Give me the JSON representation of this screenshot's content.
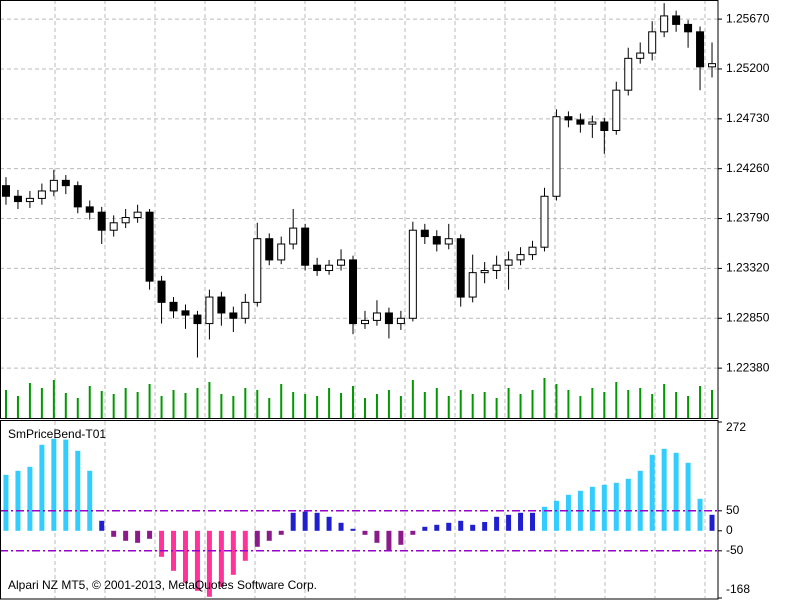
{
  "chart_data": [
    {
      "type": "candlestick",
      "open": [
        1.241,
        1.24,
        1.2395,
        1.2398,
        1.2405,
        1.2415,
        1.241,
        1.239,
        1.2385,
        1.2368,
        1.2375,
        1.238,
        1.2385,
        1.232,
        1.23,
        1.2292,
        1.2288,
        1.228,
        1.2305,
        1.229,
        1.2285,
        1.23,
        1.236,
        1.234,
        1.2355,
        1.237,
        1.2335,
        1.233,
        1.2335,
        1.234,
        1.228,
        1.2283,
        1.229,
        1.228,
        1.2285,
        1.2368,
        1.2362,
        1.2355,
        1.236,
        1.2305,
        1.2328,
        1.233,
        1.2335,
        1.234,
        1.2345,
        1.2352,
        1.24,
        1.2475,
        1.2472,
        1.2468,
        1.247,
        1.2462,
        1.25,
        1.253,
        1.2535,
        1.2555,
        1.257,
        1.2562,
        1.2555,
        1.2522
      ],
      "high": [
        1.2418,
        1.2406,
        1.2405,
        1.2412,
        1.2425,
        1.242,
        1.2414,
        1.2396,
        1.239,
        1.2382,
        1.2388,
        1.2392,
        1.2388,
        1.2325,
        1.2305,
        1.2298,
        1.2292,
        1.2312,
        1.231,
        1.2296,
        1.2308,
        1.2375,
        1.2365,
        1.2362,
        1.2388,
        1.2374,
        1.2342,
        1.234,
        1.235,
        1.2344,
        1.2292,
        1.2302,
        1.2295,
        1.2292,
        1.2376,
        1.2374,
        1.2368,
        1.2374,
        1.2364,
        1.2345,
        1.2338,
        1.2344,
        1.2348,
        1.2352,
        1.2358,
        1.2408,
        1.2482,
        1.248,
        1.2478,
        1.2476,
        1.2474,
        1.2508,
        1.254,
        1.2545,
        1.2565,
        1.2582,
        1.2575,
        1.2566,
        1.256,
        1.2545
      ],
      "low": [
        1.2392,
        1.2388,
        1.2389,
        1.2392,
        1.24,
        1.2402,
        1.2384,
        1.2378,
        1.2355,
        1.2362,
        1.237,
        1.2375,
        1.2312,
        1.228,
        1.2285,
        1.2275,
        1.2248,
        1.2265,
        1.2278,
        1.2272,
        1.228,
        1.2296,
        1.2335,
        1.2336,
        1.235,
        1.233,
        1.2325,
        1.2326,
        1.233,
        1.227,
        1.2275,
        1.2278,
        1.2266,
        1.2274,
        1.2282,
        1.2355,
        1.2348,
        1.235,
        1.2296,
        1.23,
        1.2318,
        1.2322,
        1.2312,
        1.2335,
        1.234,
        1.2348,
        1.2396,
        1.2465,
        1.246,
        1.2455,
        1.244,
        1.2458,
        1.2495,
        1.2525,
        1.2528,
        1.255,
        1.2555,
        1.254,
        1.25,
        1.2512
      ],
      "close": [
        1.24,
        1.2395,
        1.2398,
        1.2405,
        1.2415,
        1.241,
        1.239,
        1.2385,
        1.2368,
        1.2375,
        1.238,
        1.2385,
        1.232,
        1.23,
        1.2292,
        1.2288,
        1.228,
        1.2305,
        1.229,
        1.2285,
        1.23,
        1.236,
        1.234,
        1.2355,
        1.237,
        1.2335,
        1.233,
        1.2335,
        1.234,
        1.228,
        1.2283,
        1.229,
        1.228,
        1.2285,
        1.2368,
        1.2362,
        1.2355,
        1.236,
        1.2305,
        1.2328,
        1.233,
        1.2335,
        1.234,
        1.2345,
        1.2352,
        1.24,
        1.2475,
        1.2472,
        1.2468,
        1.247,
        1.2462,
        1.25,
        1.253,
        1.2535,
        1.2555,
        1.257,
        1.2562,
        1.2555,
        1.2522,
        1.2525
      ],
      "volume": [
        28,
        22,
        35,
        30,
        38,
        25,
        20,
        32,
        27,
        24,
        30,
        26,
        34,
        22,
        28,
        25,
        30,
        36,
        24,
        22,
        30,
        28,
        20,
        34,
        26,
        24,
        22,
        30,
        25,
        32,
        20,
        24,
        28,
        22,
        38,
        26,
        30,
        22,
        28,
        24,
        26,
        20,
        30,
        24,
        28,
        40,
        34,
        28,
        22,
        30,
        26,
        36,
        28,
        30,
        24,
        34,
        26,
        22,
        32,
        28
      ],
      "volume_color": "#009900",
      "ylim": [
        1.2191,
        1.2585
      ],
      "yticks": [
        {
          "value": 1.2567,
          "label": "1.25670"
        },
        {
          "value": 1.252,
          "label": "1.25200"
        },
        {
          "value": 1.2473,
          "label": "1.24730"
        },
        {
          "value": 1.2426,
          "label": "1.24260"
        },
        {
          "value": 1.2379,
          "label": "1.23790"
        },
        {
          "value": 1.2332,
          "label": "1.23320"
        },
        {
          "value": 1.2285,
          "label": "1.22850"
        },
        {
          "value": 1.2238,
          "label": "1.22380"
        }
      ],
      "grid": true
    },
    {
      "type": "bar",
      "title": "SmPriceBend-T01",
      "values": [
        140,
        150,
        160,
        215,
        230,
        228,
        200,
        150,
        25,
        -15,
        -25,
        -30,
        -20,
        -65,
        -100,
        -130,
        -150,
        -165,
        -140,
        -110,
        -75,
        -40,
        -25,
        -10,
        45,
        48,
        45,
        35,
        20,
        5,
        -10,
        -30,
        -48,
        -35,
        -10,
        10,
        15,
        20,
        25,
        15,
        22,
        35,
        40,
        45,
        45,
        60,
        75,
        90,
        100,
        110,
        115,
        120,
        130,
        150,
        190,
        205,
        195,
        170,
        80,
        40
      ],
      "colors": [
        "#33ccff",
        "#1f1fd0",
        "#8b1a8b",
        "#ff3399"
      ],
      "levels": [
        50,
        -50
      ],
      "level_color": "#9900cc",
      "ylim": [
        -168,
        272
      ],
      "yticks": [
        272,
        50,
        0,
        -50,
        -168
      ]
    }
  ],
  "footer": "Alpari NZ MT5, © 2001-2013, MetaQuotes Software Corp."
}
